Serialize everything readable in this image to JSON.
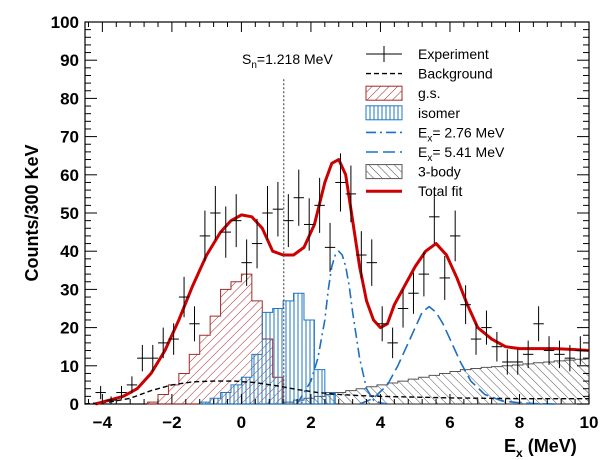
{
  "colors": {
    "gs": "#a52a2a",
    "isomer": "#1f77c4",
    "comp": "#1f6fc0",
    "total": "#cc0000",
    "threebody": "#555555",
    "background": "#000000"
  },
  "chart_data": {
    "type": "line",
    "ylabel": "Counts/300 KeV",
    "xlabel_main": "E",
    "xlabel_sub": "x",
    "xlabel_unit": " (MeV)",
    "xlim": [
      -4.5,
      10
    ],
    "ylim": [
      0,
      100
    ],
    "xticks": [
      "−4",
      "−2",
      "0",
      "2",
      "4",
      "6",
      "8",
      "10"
    ],
    "yticks": [
      "0",
      "10",
      "20",
      "30",
      "40",
      "50",
      "60",
      "70",
      "80",
      "90",
      "100"
    ],
    "annotation": {
      "main": "S",
      "sub": "n",
      "rest": "=1.218 MeV",
      "x": 1.218
    },
    "legend": [
      {
        "key": "experiment",
        "label": "Experiment",
        "style": "errorbar"
      },
      {
        "key": "background",
        "label": "Background",
        "style": "dashed"
      },
      {
        "key": "gs",
        "label": "g.s.",
        "style": "hatch-diag"
      },
      {
        "key": "isomer",
        "label": "isomer",
        "style": "hatch-vert"
      },
      {
        "key": "comp1",
        "label_main": "E",
        "label_sub": "x",
        "label_rest": "= 2.76 MeV",
        "style": "dashdot"
      },
      {
        "key": "comp2",
        "label_main": "E",
        "label_sub": "x",
        "label_rest": "= 5.41 MeV",
        "style": "longdash"
      },
      {
        "key": "threebody",
        "label": "3-body",
        "style": "hatch-gray"
      },
      {
        "key": "total",
        "label": "Total fit",
        "style": "solid"
      }
    ],
    "experiment": {
      "x": [
        -4.05,
        -3.75,
        -3.45,
        -3.15,
        -2.85,
        -2.55,
        -2.25,
        -1.95,
        -1.65,
        -1.35,
        -1.05,
        -0.75,
        -0.45,
        -0.15,
        0.15,
        0.45,
        0.75,
        1.05,
        1.35,
        1.65,
        1.95,
        2.25,
        2.55,
        2.85,
        3.15,
        3.45,
        3.75,
        4.05,
        4.35,
        4.65,
        4.95,
        5.25,
        5.55,
        5.85,
        6.15,
        6.45,
        6.75,
        7.05,
        7.35,
        7.65,
        7.95,
        8.25,
        8.55,
        8.85,
        9.15,
        9.45,
        9.75
      ],
      "y": [
        3,
        1,
        3,
        5,
        12,
        12,
        16,
        17,
        28,
        21,
        44,
        50,
        45,
        48,
        37,
        42,
        50,
        51,
        48,
        54,
        47,
        52,
        41,
        58,
        55,
        39,
        37,
        21,
        16,
        25,
        29,
        34,
        49,
        33,
        44,
        26,
        17,
        20,
        15,
        11,
        11,
        13,
        21,
        14,
        13,
        12,
        14
      ]
    },
    "gs": {
      "edges": [
        -2.7,
        -2.4,
        -2.1,
        -1.8,
        -1.5,
        -1.2,
        -0.9,
        -0.6,
        -0.3,
        0.0,
        0.3,
        0.6,
        0.9,
        1.2
      ],
      "values": [
        0.5,
        2.5,
        5,
        8,
        13,
        18,
        23,
        30,
        32,
        34,
        27,
        17,
        7
      ]
    },
    "isomer": {
      "edges": [
        -1.2,
        -0.9,
        -0.6,
        -0.3,
        0.0,
        0.3,
        0.6,
        0.9,
        1.2,
        1.5,
        1.8,
        2.1,
        2.4,
        2.7
      ],
      "values": [
        0.5,
        1.5,
        3,
        5,
        7,
        13,
        24,
        25,
        27,
        29,
        22,
        9,
        3
      ]
    },
    "threebody": {
      "edges": [
        1.2,
        1.5,
        1.8,
        2.1,
        2.4,
        2.7,
        3.0,
        3.3,
        3.6,
        3.9,
        4.2,
        4.5,
        4.8,
        5.1,
        5.4,
        5.7,
        6.0,
        6.3,
        6.6,
        6.9,
        7.2,
        7.5,
        7.8,
        8.1,
        8.4,
        8.7,
        9.0,
        9.3,
        9.6,
        9.9,
        10.0
      ],
      "values": [
        0.5,
        1,
        1.5,
        2,
        2.5,
        3,
        3.5,
        4,
        4.5,
        5,
        5.5,
        6,
        6.5,
        7,
        7.5,
        8,
        8.5,
        9,
        9.3,
        9.6,
        9.8,
        10,
        10.2,
        10.5,
        10.8,
        11,
        11.3,
        11.5,
        11.7,
        11.8
      ]
    },
    "background": {
      "x": [
        -4.5,
        -3.8,
        -3.2,
        -2.6,
        -2.0,
        -1.4,
        -0.8,
        -0.2,
        0.4,
        1.0,
        1.6,
        2.2,
        2.8,
        3.4,
        4.0,
        5.0,
        6.0,
        7.0,
        8.0,
        9.0,
        10.0
      ],
      "y": [
        0,
        0.5,
        1.5,
        3.5,
        5,
        5.8,
        6,
        6,
        5.6,
        4.8,
        3.8,
        3,
        2.5,
        2.2,
        2,
        1.8,
        1.6,
        1.5,
        1.4,
        1.4,
        1.4
      ]
    },
    "comp1": {
      "x": [
        1.6,
        1.8,
        2.0,
        2.2,
        2.4,
        2.5,
        2.6,
        2.7,
        2.8,
        2.9,
        3.0,
        3.1,
        3.2,
        3.4,
        3.6,
        3.8,
        4.0,
        4.2
      ],
      "y": [
        0,
        3,
        6,
        12,
        22,
        30,
        36,
        39,
        40,
        39,
        36,
        31,
        24,
        12,
        4,
        1,
        0.3,
        0
      ]
    },
    "comp2": {
      "x": [
        3.4,
        3.8,
        4.2,
        4.5,
        4.8,
        5.0,
        5.2,
        5.4,
        5.6,
        5.8,
        6.0,
        6.3,
        6.6,
        7.0,
        7.5,
        8.0,
        8.5,
        9.0
      ],
      "y": [
        0,
        1.5,
        5,
        10,
        16,
        20,
        24,
        25.5,
        24,
        21,
        17,
        11,
        6,
        2.5,
        0.8,
        0.3,
        0.1,
        0
      ]
    },
    "total": {
      "x": [
        -4.2,
        -3.8,
        -3.4,
        -3.0,
        -2.6,
        -2.2,
        -1.8,
        -1.4,
        -1.0,
        -0.6,
        -0.3,
        0.0,
        0.3,
        0.6,
        0.9,
        1.2,
        1.5,
        1.8,
        2.1,
        2.4,
        2.6,
        2.8,
        3.0,
        3.2,
        3.4,
        3.6,
        3.8,
        4.0,
        4.2,
        4.4,
        4.7,
        5.0,
        5.3,
        5.6,
        5.9,
        6.2,
        6.5,
        6.8,
        7.2,
        7.6,
        8.0,
        8.5,
        9.0,
        9.5,
        10.0
      ],
      "y": [
        0,
        1,
        2,
        4,
        8,
        14,
        22,
        31,
        39,
        45,
        48,
        49.5,
        49,
        46,
        40,
        39,
        39,
        41,
        47,
        58,
        63,
        64,
        60,
        48,
        36,
        27,
        22,
        20,
        21,
        26,
        31,
        36,
        40,
        42,
        39,
        33,
        26,
        20,
        17,
        15,
        14.5,
        14.5,
        14.5,
        14.3,
        14
      ]
    }
  }
}
